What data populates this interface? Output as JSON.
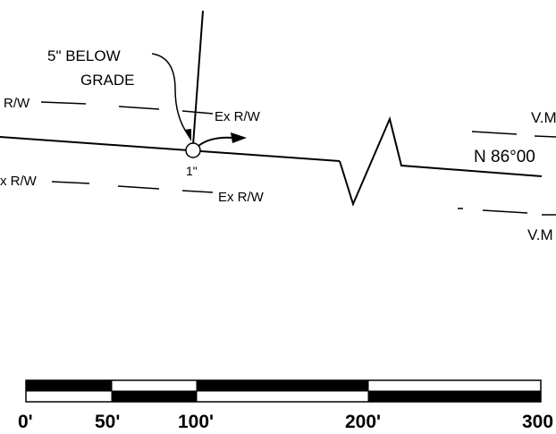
{
  "drawing": {
    "callout": {
      "line1": "5\" BELOW",
      "line2": "GRADE"
    },
    "row_labels": {
      "top_left": "R/W",
      "top_ex": "Ex R/W",
      "bottom_left": "x R/W",
      "bottom_ex": "Ex R/W"
    },
    "monument_marker": "1\"",
    "bearing": "N 86°00",
    "vm_top": "V.M",
    "vm_bottom": "V.M",
    "scale_bar": {
      "ticks": [
        "0'",
        "50'",
        "100'",
        "200'",
        "300"
      ]
    }
  }
}
